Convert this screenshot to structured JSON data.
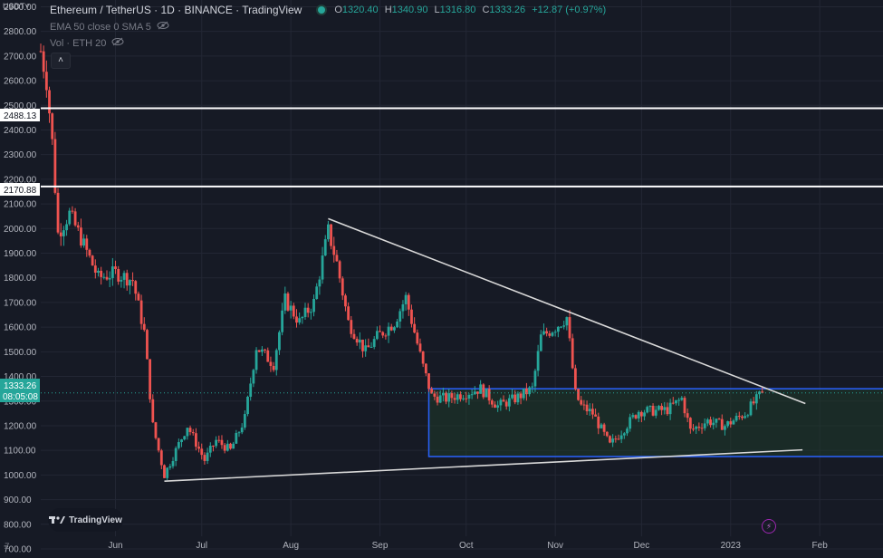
{
  "header": {
    "symbol": "USDT",
    "title": "Ethereum / TetherUS · 1D · BINANCE · TradingView",
    "ohlc": {
      "o_label": "O",
      "o": "1320.40",
      "h_label": "H",
      "h": "1340.90",
      "l_label": "L",
      "l": "1316.80",
      "c_label": "C",
      "c": "1333.26",
      "change": "+12.87 (+0.97%)"
    }
  },
  "indicators": [
    {
      "label": "EMA 50 close 0 SMA 5"
    },
    {
      "label": "Vol · ETH 20"
    }
  ],
  "collapse_label": "˄",
  "branding": {
    "logo_text": "TradingView"
  },
  "z_label": "Z",
  "colors": {
    "up": "#26a69a",
    "down": "#ef5350",
    "background": "#161a25",
    "grid": "#232734",
    "box": "#2962ff",
    "box_fill": "#1f3a2a"
  },
  "chart_data": {
    "type": "candlestick",
    "y_axis": {
      "ticks": [
        "2900.00",
        "2800.00",
        "2700.00",
        "2600.00",
        "2500.00",
        "2400.00",
        "2300.00",
        "2200.00",
        "2100.00",
        "2000.00",
        "1900.00",
        "1800.00",
        "1700.00",
        "1600.00",
        "1500.00",
        "1400.00",
        "1300.00",
        "1200.00",
        "1100.00",
        "1000.00",
        "900.00",
        "800.00",
        "700.00"
      ],
      "tick_values": [
        2900,
        2800,
        2700,
        2600,
        2500,
        2400,
        2300,
        2200,
        2100,
        2000,
        1900,
        1800,
        1700,
        1600,
        1500,
        1400,
        1300,
        1200,
        1100,
        1000,
        900,
        800,
        700
      ],
      "range": [
        700,
        2920
      ]
    },
    "x_axis": {
      "labels": [
        "Jun",
        "Jul",
        "Aug",
        "Sep",
        "Oct",
        "Nov",
        "Dec",
        "2023",
        "Feb"
      ],
      "label_dates": [
        "2022-06-01",
        "2022-07-01",
        "2022-08-01",
        "2022-09-01",
        "2022-10-01",
        "2022-11-01",
        "2022-12-01",
        "2023-01-01",
        "2023-02-01"
      ],
      "range": [
        "2022-05-06",
        "2023-02-23"
      ]
    },
    "price_labels": {
      "current_price": "1333.26",
      "countdown": "08:05:08",
      "level_1": "2488.13",
      "level_2": "2170.88"
    },
    "horizontal_lines": [
      2488.13,
      2170.88
    ],
    "trendlines": [
      {
        "from": {
          "date": "2022-08-14",
          "price": 2040
        },
        "to": {
          "date": "2023-01-27",
          "price": 1290
        }
      },
      {
        "from": {
          "date": "2022-06-18",
          "price": 975
        },
        "to": {
          "date": "2023-01-26",
          "price": 1102
        }
      }
    ],
    "range_box": {
      "from_date": "2022-09-18",
      "to_date": "2023-02-23",
      "top": 1350,
      "bottom": 1075
    },
    "series": [
      {
        "name": "candles",
        "anchors": [
          [
            "2022-05-06",
            2720
          ],
          [
            "2022-05-08",
            2600
          ],
          [
            "2022-05-10",
            2350
          ],
          [
            "2022-05-12",
            1980
          ],
          [
            "2022-05-16",
            2060
          ],
          [
            "2022-05-20",
            1960
          ],
          [
            "2022-05-26",
            1800
          ],
          [
            "2022-06-01",
            1820
          ],
          [
            "2022-06-07",
            1790
          ],
          [
            "2022-06-11",
            1580
          ],
          [
            "2022-06-14",
            1200
          ],
          [
            "2022-06-18",
            1000
          ],
          [
            "2022-06-22",
            1100
          ],
          [
            "2022-06-26",
            1200
          ],
          [
            "2022-07-02",
            1060
          ],
          [
            "2022-07-06",
            1140
          ],
          [
            "2022-07-11",
            1100
          ],
          [
            "2022-07-16",
            1230
          ],
          [
            "2022-07-20",
            1520
          ],
          [
            "2022-07-26",
            1450
          ],
          [
            "2022-07-30",
            1710
          ],
          [
            "2022-08-04",
            1620
          ],
          [
            "2022-08-09",
            1700
          ],
          [
            "2022-08-14",
            1990
          ],
          [
            "2022-08-17",
            1860
          ],
          [
            "2022-08-21",
            1620
          ],
          [
            "2022-08-27",
            1500
          ],
          [
            "2022-08-31",
            1560
          ],
          [
            "2022-09-06",
            1620
          ],
          [
            "2022-09-10",
            1720
          ],
          [
            "2022-09-13",
            1580
          ],
          [
            "2022-09-16",
            1440
          ],
          [
            "2022-09-19",
            1320
          ],
          [
            "2022-09-24",
            1310
          ],
          [
            "2022-09-30",
            1330
          ],
          [
            "2022-10-06",
            1350
          ],
          [
            "2022-10-12",
            1280
          ],
          [
            "2022-10-18",
            1310
          ],
          [
            "2022-10-24",
            1350
          ],
          [
            "2022-10-27",
            1560
          ],
          [
            "2022-11-01",
            1600
          ],
          [
            "2022-11-05",
            1640
          ],
          [
            "2022-11-08",
            1330
          ],
          [
            "2022-11-10",
            1280
          ],
          [
            "2022-11-14",
            1250
          ],
          [
            "2022-11-20",
            1120
          ],
          [
            "2022-11-25",
            1190
          ],
          [
            "2022-11-30",
            1260
          ],
          [
            "2022-12-05",
            1260
          ],
          [
            "2022-12-10",
            1265
          ],
          [
            "2022-12-15",
            1310
          ],
          [
            "2022-12-18",
            1180
          ],
          [
            "2022-12-24",
            1220
          ],
          [
            "2022-12-30",
            1200
          ],
          [
            "2023-01-06",
            1250
          ],
          [
            "2023-01-12",
            1333.26
          ]
        ]
      }
    ]
  }
}
